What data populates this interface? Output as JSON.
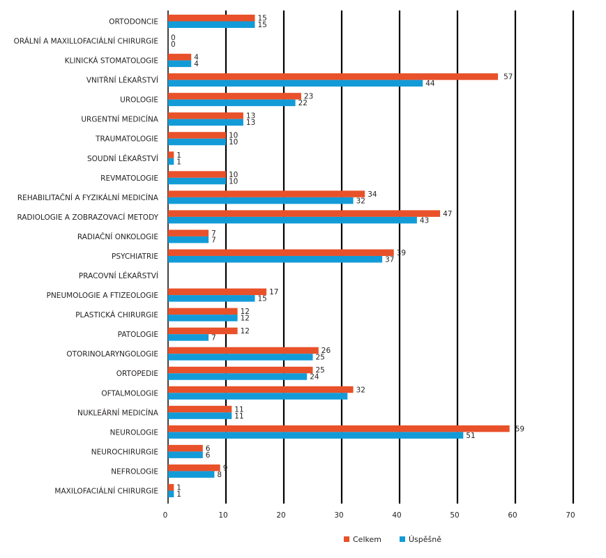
{
  "chart_data": {
    "type": "bar",
    "orientation": "horizontal",
    "title": "",
    "xlabel": "",
    "ylabel": "",
    "xlim": [
      0,
      70
    ],
    "x_ticks": [
      "0",
      "10",
      "20",
      "30",
      "40",
      "50",
      "60",
      "70"
    ],
    "grid": "vertical",
    "legend_position": "bottom",
    "categories": [
      "ORTODONCIE",
      "ORÁLNÍ A MAXILLOFACIÁLNÍ CHIRURGIE",
      "KLINICKÁ STOMATOLOGIE",
      "VNITŘNÍ LÉKAŘSTVÍ",
      "UROLOGIE",
      "URGENTNÍ MEDICÍNA",
      "TRAUMATOLOGIE",
      "SOUDNÍ LÉKAŘSTVÍ",
      "REVMATOLOGIE",
      "REHABILITAČNÍ A FYZIKÁLNÍ MEDICÍNA",
      "RADIOLOGIE A ZOBRAZOVACÍ METODY",
      "RADIAČNÍ ONKOLOGIE",
      "PSYCHIATRIE",
      "PRACOVNÍ LÉKAŘSTVÍ",
      "PNEUMOLOGIE A FTIZEOLOGIE",
      "PLASTICKÁ CHIRURGIE",
      "PATOLOGIE",
      "OTORINOLARYNGOLOGIE",
      "ORTOPEDIE",
      "OFTALMOLOGIE",
      "NUKLEÁRNÍ MEDICÍNA",
      "NEUROLOGIE",
      "NEUROCHIRURGIE",
      "NEFROLOGIE",
      "MAXILOFACIÁLNÍ CHIRURGIE"
    ],
    "series": [
      {
        "name": "Celkem",
        "color": "#e8512a",
        "values": [
          15,
          0,
          4,
          57,
          23,
          13,
          10,
          1,
          10,
          34,
          47,
          7,
          39,
          null,
          17,
          12,
          12,
          26,
          25,
          32,
          11,
          59,
          6,
          9,
          1
        ],
        "labels": [
          "15",
          "0",
          "4",
          "57",
          "23",
          "13",
          "10",
          "1",
          "10",
          "34",
          "47",
          "7",
          "39",
          "",
          "17",
          "12",
          "12",
          "26",
          "25",
          "32",
          "11",
          "59",
          "6",
          "9",
          "1"
        ]
      },
      {
        "name": "Úspěšně",
        "color": "#139bd8",
        "values": [
          15,
          0,
          4,
          44,
          22,
          13,
          10,
          1,
          10,
          32,
          43,
          7,
          37,
          null,
          15,
          12,
          7,
          25,
          24,
          31,
          11,
          51,
          6,
          8,
          1
        ],
        "labels": [
          "15",
          "0",
          "4",
          "44",
          "22",
          "13",
          "10",
          "1",
          "10",
          "32",
          "43",
          "7",
          "37",
          "",
          "15",
          "12",
          "7",
          "25",
          "24",
          "",
          "11",
          "51",
          "6",
          "8",
          "1"
        ]
      }
    ]
  }
}
